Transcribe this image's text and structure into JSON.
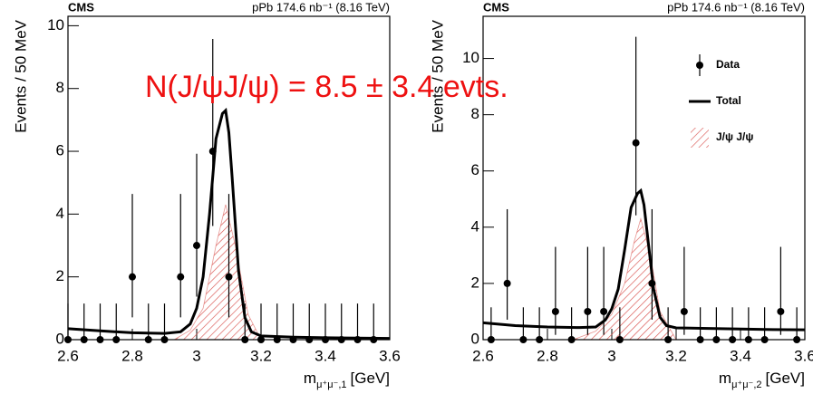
{
  "overlay_text": "N(J/ψJ/ψ) = 8.5 ± 3.4 evts.",
  "chart_data": [
    {
      "type": "errorbar",
      "brand": "CMS",
      "header": "pPb 174.6 nb⁻¹ (8.16 TeV)",
      "y_label": "Events / 50 MeV",
      "x_label": [
        "m",
        "μ⁺μ⁻,1",
        "[GeV]"
      ],
      "xlim": [
        2.6,
        3.6
      ],
      "xticks": [
        2.6,
        2.8,
        3,
        3.2,
        3.4,
        3.6
      ],
      "ylim": [
        0,
        10.3
      ],
      "yticks": [
        0,
        2,
        4,
        6,
        8,
        10
      ],
      "series": [
        {
          "kind": "points",
          "color": "#000000",
          "x": [
            2.6,
            2.65,
            2.7,
            2.75,
            2.8,
            2.85,
            2.9,
            2.95,
            3.0,
            3.05,
            3.1,
            3.15,
            3.2,
            3.25,
            3.3,
            3.35,
            3.4,
            3.45,
            3.5,
            3.55
          ],
          "values": [
            0,
            0,
            0,
            0,
            2,
            0,
            0,
            2,
            3,
            6,
            2,
            0,
            0,
            0,
            0,
            0,
            0,
            0,
            0,
            0
          ],
          "err_low": [
            0,
            0,
            0,
            0,
            1.29,
            0,
            0,
            1.29,
            1.63,
            2.38,
            1.29,
            0,
            0,
            0,
            0,
            0,
            0,
            0,
            0,
            0
          ],
          "err_high": [
            1.15,
            1.15,
            1.15,
            1.15,
            2.64,
            1.15,
            1.15,
            2.64,
            2.92,
            3.58,
            2.64,
            1.15,
            1.15,
            1.15,
            1.15,
            1.15,
            1.15,
            1.15,
            1.15,
            1.15
          ]
        },
        {
          "kind": "line",
          "color": "#000000",
          "x": [
            2.6,
            2.7,
            2.8,
            2.9,
            2.95,
            2.98,
            3.0,
            3.02,
            3.04,
            3.06,
            3.08,
            3.09,
            3.1,
            3.11,
            3.13,
            3.15,
            3.17,
            3.2,
            3.3,
            3.4,
            3.5,
            3.6
          ],
          "values": [
            0.35,
            0.28,
            0.22,
            0.2,
            0.25,
            0.5,
            1.0,
            2.0,
            4.0,
            6.4,
            7.2,
            7.3,
            6.6,
            5.2,
            2.2,
            0.7,
            0.25,
            0.12,
            0.08,
            0.06,
            0.05,
            0.04
          ]
        },
        {
          "kind": "area",
          "color": "#d9534f",
          "x": [
            2.93,
            2.98,
            3.02,
            3.06,
            3.09,
            3.12,
            3.16,
            3.2
          ],
          "values": [
            0,
            0.3,
            1.0,
            3.0,
            4.3,
            3.0,
            0.8,
            0
          ]
        }
      ]
    },
    {
      "type": "errorbar",
      "brand": "CMS",
      "header": "pPb 174.6 nb⁻¹ (8.16 TeV)",
      "y_label": "Events / 50 MeV",
      "x_label": [
        "m",
        "μ⁺μ⁻,2",
        "[GeV]"
      ],
      "xlim": [
        2.6,
        3.6
      ],
      "xticks": [
        2.6,
        2.8,
        3,
        3.2,
        3.4,
        3.6
      ],
      "ylim": [
        0,
        11.5
      ],
      "yticks": [
        0,
        2,
        4,
        6,
        8,
        10
      ],
      "legend": "upper right",
      "series": [
        {
          "kind": "points",
          "name": "Data",
          "color": "#000000",
          "x": [
            2.625,
            2.675,
            2.725,
            2.775,
            2.825,
            2.875,
            2.925,
            2.975,
            3.025,
            3.075,
            3.125,
            3.175,
            3.225,
            3.275,
            3.325,
            3.375,
            3.425,
            3.475,
            3.525,
            3.575
          ],
          "values": [
            0,
            2,
            0,
            0,
            1,
            0,
            1,
            1,
            0,
            7,
            2,
            0,
            1,
            0,
            0,
            0,
            0,
            0,
            1,
            0
          ],
          "err_low": [
            0,
            1.29,
            0,
            0,
            0.83,
            0,
            0.83,
            0.83,
            0,
            2.58,
            1.29,
            0,
            0.83,
            0,
            0,
            0,
            0,
            0,
            0.83,
            0
          ],
          "err_high": [
            1.15,
            2.64,
            1.15,
            1.15,
            2.3,
            1.15,
            2.3,
            2.3,
            1.15,
            3.77,
            2.64,
            1.15,
            2.3,
            1.15,
            1.15,
            1.15,
            1.15,
            1.15,
            2.3,
            1.15
          ]
        },
        {
          "kind": "line",
          "name": "Total",
          "color": "#000000",
          "x": [
            2.6,
            2.7,
            2.8,
            2.9,
            2.95,
            2.98,
            3.0,
            3.02,
            3.04,
            3.06,
            3.08,
            3.09,
            3.1,
            3.11,
            3.13,
            3.15,
            3.17,
            3.2,
            3.3,
            3.4,
            3.5,
            3.6
          ],
          "values": [
            0.6,
            0.5,
            0.45,
            0.43,
            0.45,
            0.7,
            1.1,
            1.8,
            3.2,
            4.7,
            5.2,
            5.3,
            4.8,
            3.8,
            1.8,
            0.8,
            0.5,
            0.42,
            0.4,
            0.38,
            0.36,
            0.35
          ]
        },
        {
          "kind": "area",
          "name": "J/ψ J/ψ",
          "color": "#d9534f",
          "x": [
            2.88,
            2.95,
            3.0,
            3.04,
            3.07,
            3.09,
            3.12,
            3.15,
            3.2
          ],
          "values": [
            0,
            0.3,
            0.9,
            2.0,
            3.5,
            4.3,
            3.0,
            1.0,
            0
          ]
        }
      ]
    }
  ]
}
